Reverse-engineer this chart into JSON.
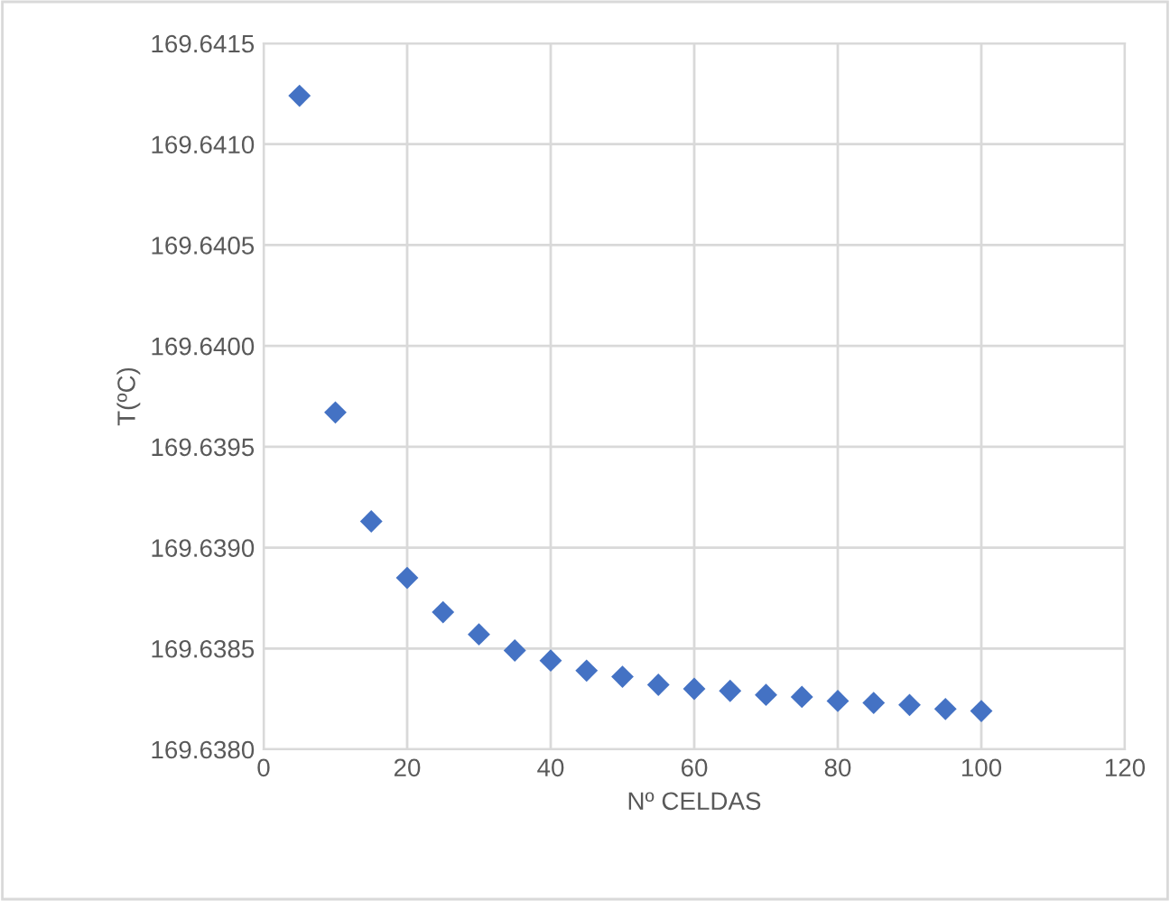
{
  "chart_data": {
    "type": "scatter",
    "xlabel": "Nº CELDAS",
    "ylabel": "T(ºC)",
    "x": [
      5,
      10,
      15,
      20,
      25,
      30,
      35,
      40,
      45,
      50,
      55,
      60,
      65,
      70,
      75,
      80,
      85,
      90,
      95,
      100
    ],
    "values": [
      169.64124,
      169.63967,
      169.63913,
      169.63885,
      169.63868,
      169.63857,
      169.63849,
      169.63844,
      169.63839,
      169.63836,
      169.63832,
      169.6383,
      169.63829,
      169.63827,
      169.63826,
      169.63824,
      169.63823,
      169.63822,
      169.6382,
      169.63819
    ],
    "color": "#4472c4",
    "marker": "diamond",
    "grid": true,
    "xlim": [
      0,
      120
    ],
    "xticks": [
      0,
      20,
      40,
      60,
      80,
      100,
      120
    ],
    "ylim": [
      169.638,
      169.6415
    ],
    "yticks": [
      {
        "value": 169.638,
        "label": "169.6380"
      },
      {
        "value": 169.6385,
        "label": "169.6385"
      },
      {
        "value": 169.639,
        "label": "169.6390"
      },
      {
        "value": 169.6395,
        "label": "169.6395"
      },
      {
        "value": 169.64,
        "label": "169.6400"
      },
      {
        "value": 169.6405,
        "label": "169.6405"
      },
      {
        "value": 169.641,
        "label": "169.6410"
      },
      {
        "value": 169.6415,
        "label": "169.6415"
      }
    ]
  }
}
